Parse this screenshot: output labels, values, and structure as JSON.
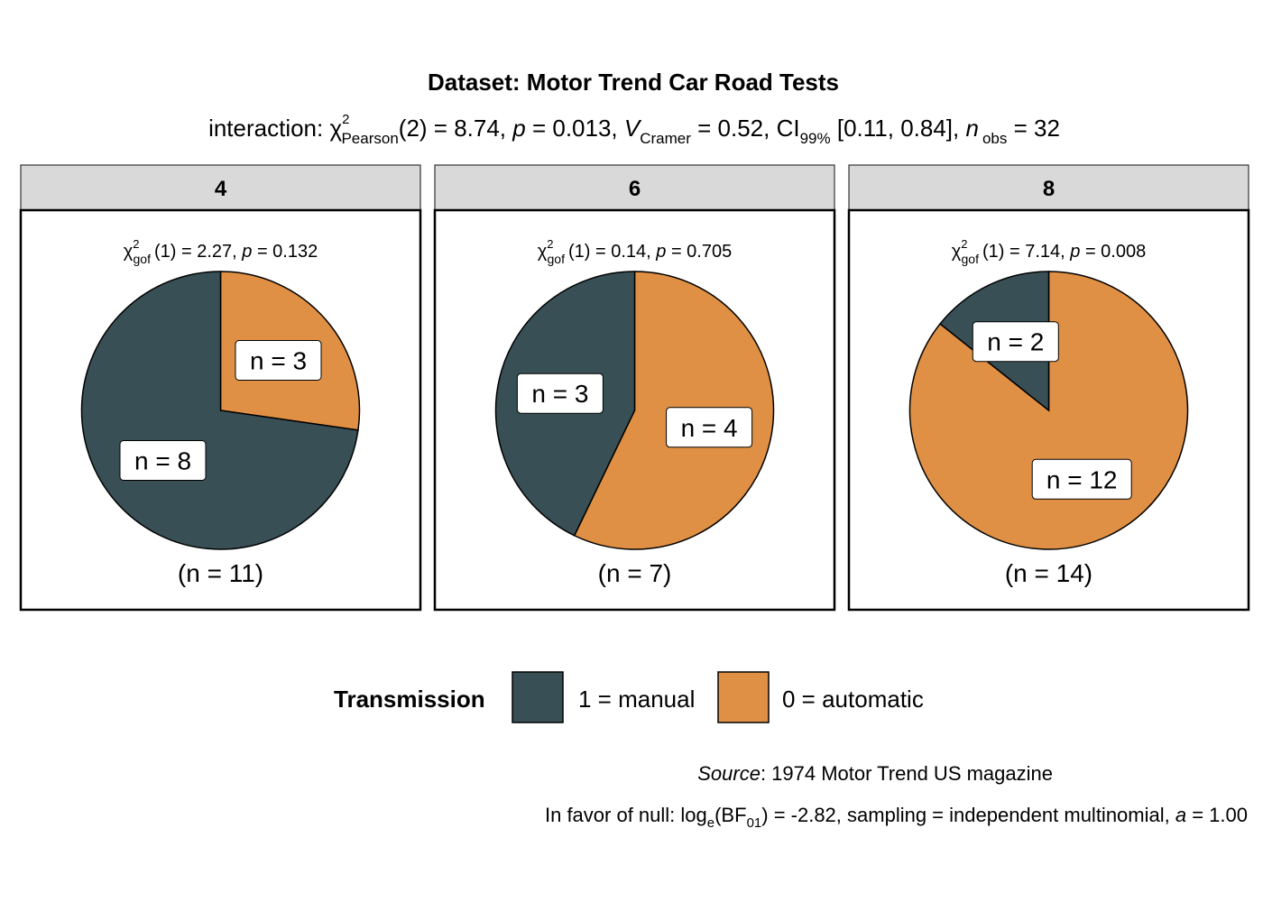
{
  "chart_data": {
    "type": "pie",
    "title": "Dataset: Motor Trend Car Road Tests",
    "subtitle": {
      "prefix": "interaction: ",
      "chi_sub": "Pearson",
      "chi_sup": "2",
      "stat_part": "(2) = 8.74, ",
      "p_var": "p",
      "p_part": " = 0.013, ",
      "v_var": "V",
      "v_sub": "Cramer",
      "v_part": " = 0.52, CI",
      "ci_sub": "99%",
      "ci_part": " [0.11, 0.84], ",
      "n_var": "n",
      "n_sub": "obs",
      "n_part": " = 32"
    },
    "facets": [
      {
        "label": "4",
        "test": {
          "chi_sup": "2",
          "chi_sub": "gof",
          "df": "(1)",
          "eq": " = 2.27, ",
          "p_var": "p",
          "p_eq": " = 0.132"
        },
        "total_label": "(n = 11)",
        "slices": [
          {
            "group": "0 = automatic",
            "value": 3,
            "label": "n = 3"
          },
          {
            "group": "1 = manual",
            "value": 8,
            "label": "n = 8"
          }
        ]
      },
      {
        "label": "6",
        "test": {
          "chi_sup": "2",
          "chi_sub": "gof",
          "df": "(1)",
          "eq": " = 0.14, ",
          "p_var": "p",
          "p_eq": " = 0.705"
        },
        "total_label": "(n = 7)",
        "slices": [
          {
            "group": "0 = automatic",
            "value": 4,
            "label": "n = 4"
          },
          {
            "group": "1 = manual",
            "value": 3,
            "label": "n = 3"
          }
        ]
      },
      {
        "label": "8",
        "test": {
          "chi_sup": "2",
          "chi_sub": "gof",
          "df": "(1)",
          "eq": " = 7.14, ",
          "p_var": "p",
          "p_eq": " = 0.008"
        },
        "total_label": "(n = 14)",
        "slices": [
          {
            "group": "0 = automatic",
            "value": 12,
            "label": "n = 12"
          },
          {
            "group": "1 = manual",
            "value": 2,
            "label": "n = 2"
          }
        ]
      }
    ],
    "legend": {
      "title": "Transmission",
      "placement": "bottom",
      "items": [
        {
          "label": "1 = manual",
          "color": "#384F55"
        },
        {
          "label": "0 = automatic",
          "color": "#DF9045"
        }
      ]
    },
    "caption": {
      "source_italic": "Source",
      "source_rest": ": 1974 Motor Trend US magazine",
      "bf_prefix": "In favor of null: log",
      "bf_log_sub": "e",
      "bf_mid": "(BF",
      "bf_sub": "01",
      "bf_rest": ") = -2.82, sampling = independent multinomial, ",
      "bf_a_var": "a",
      "bf_a_rest": " = 1.00"
    },
    "colors": {
      "0 = automatic": "#DF9045",
      "1 = manual": "#384F55",
      "strip_fill": "#D9D9D9"
    }
  }
}
